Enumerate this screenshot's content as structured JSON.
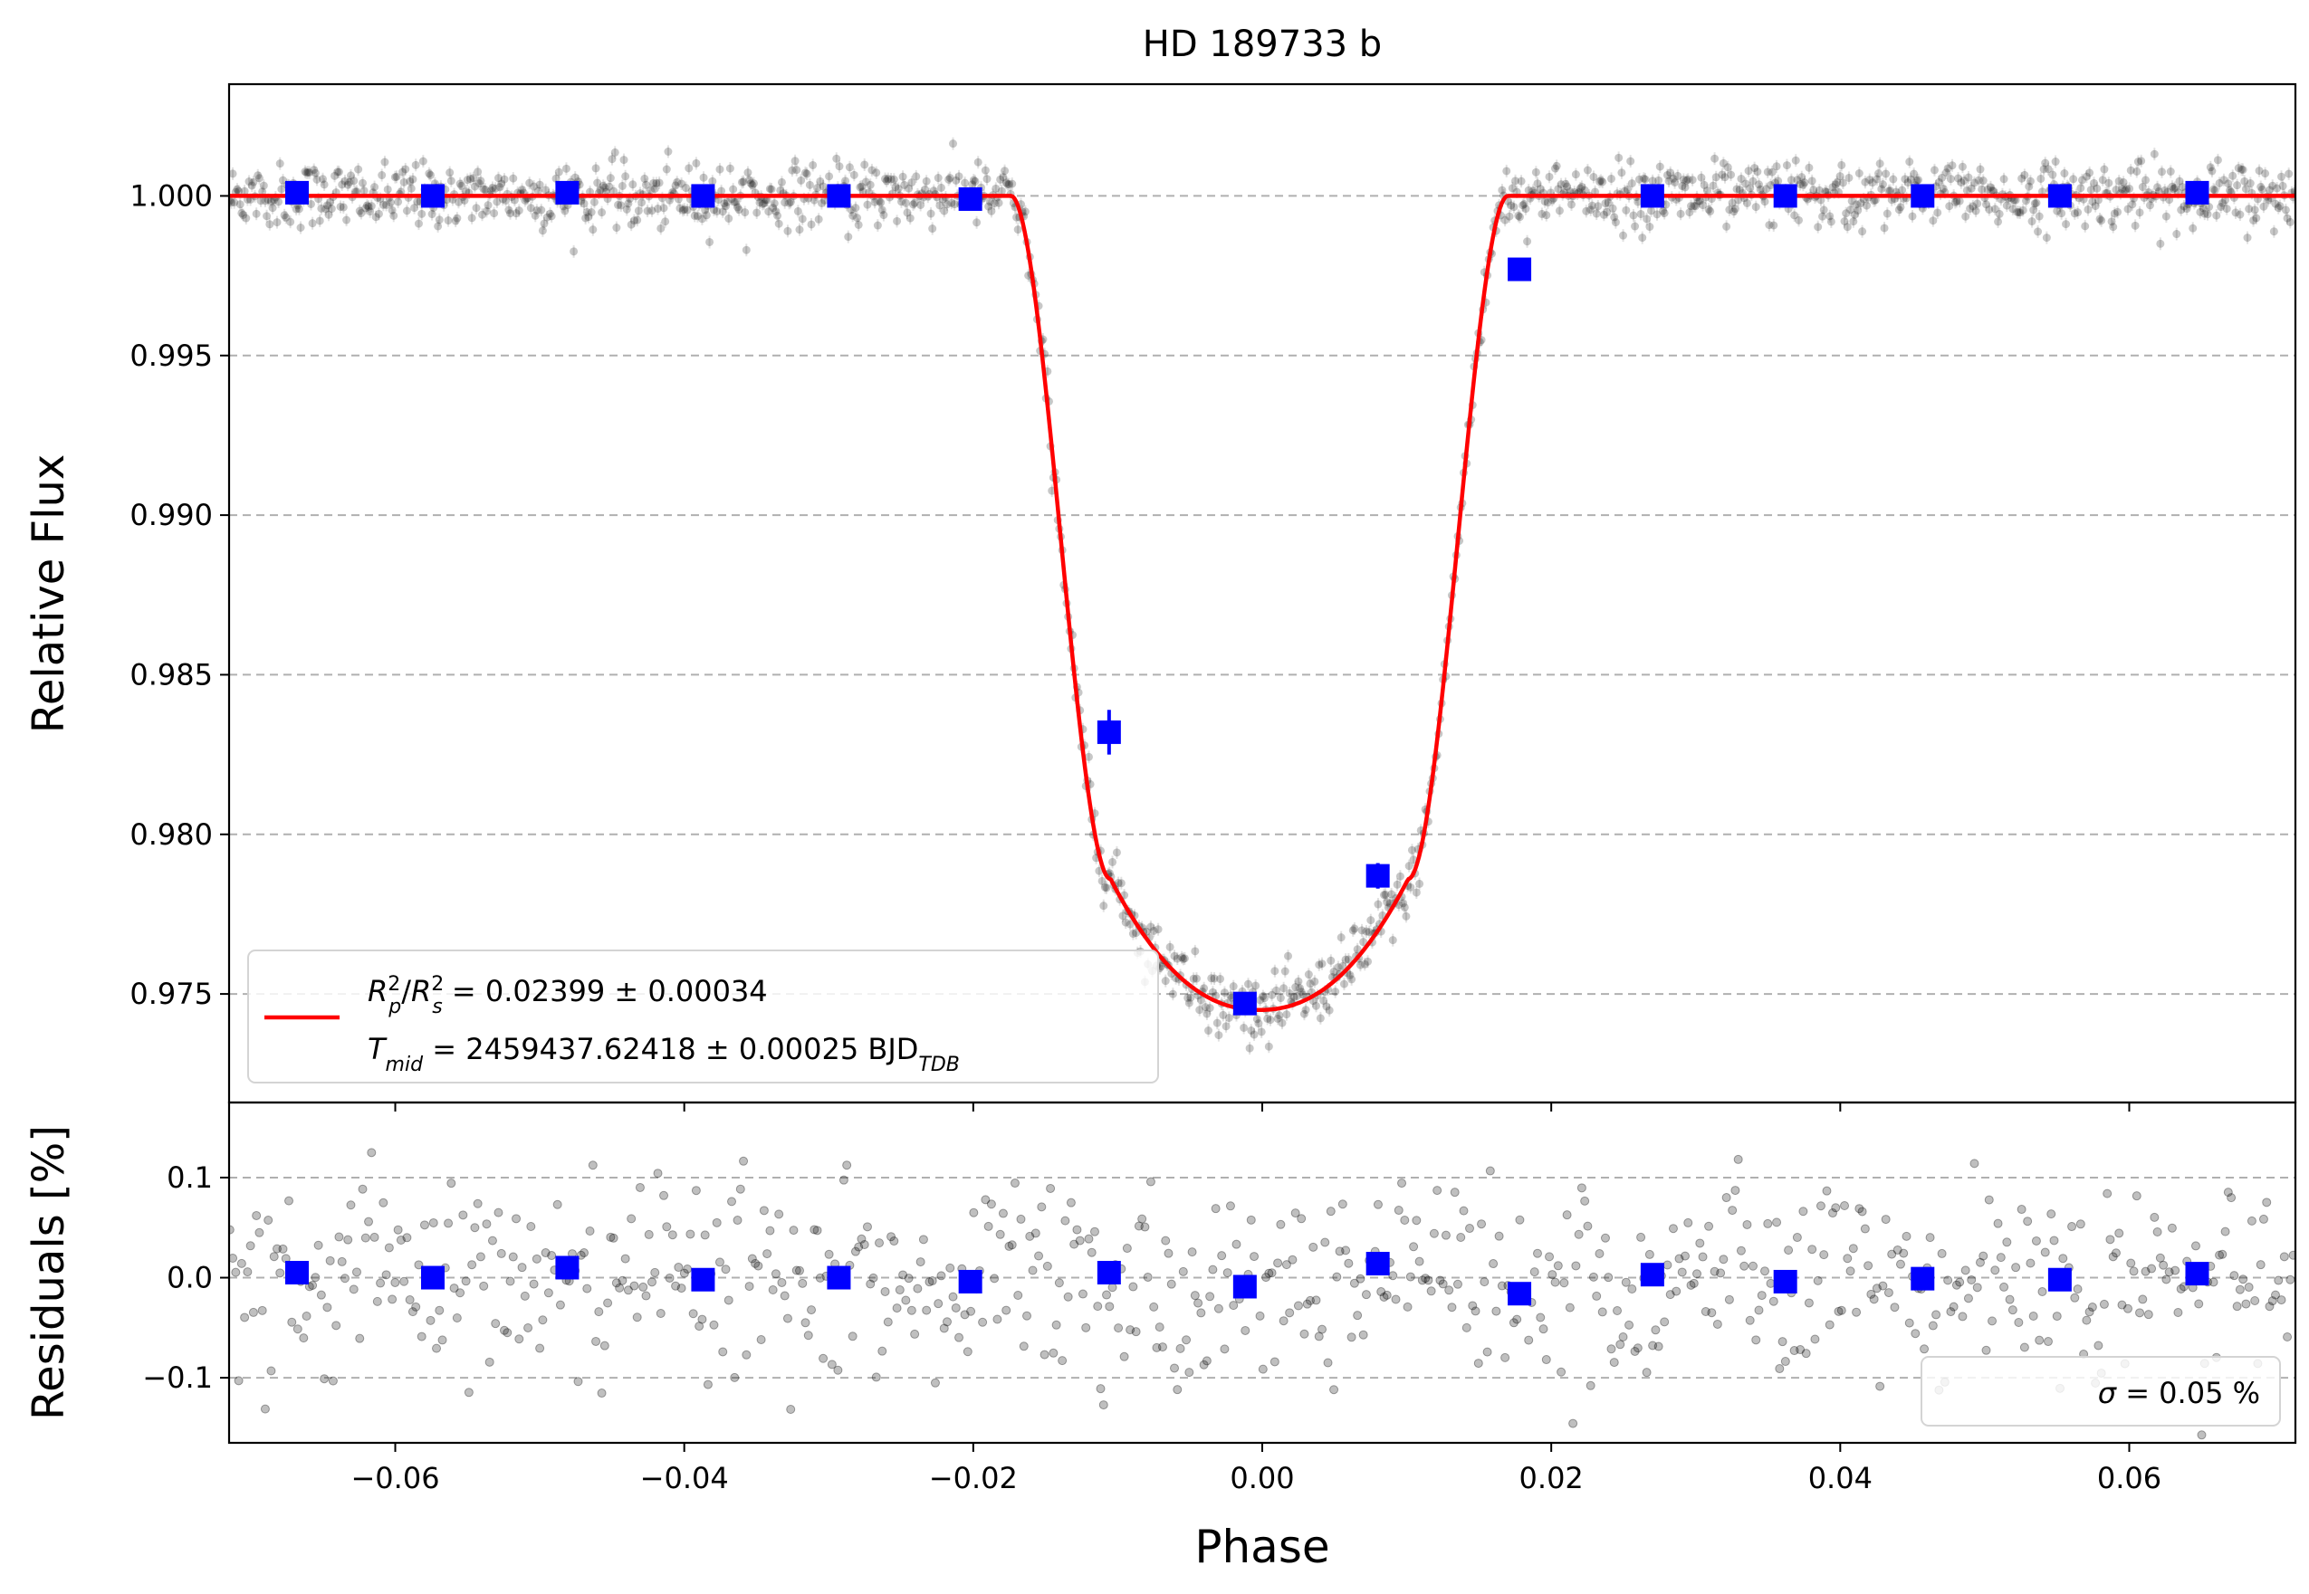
{
  "title": "HD 189733 b",
  "colors": {
    "model": "#ff0000",
    "binned": "#0000ff",
    "raw": "#000000",
    "grid": "#b0b0b0",
    "background": "#ffffff"
  },
  "chart_data": [
    {
      "type": "scatter",
      "panel": "top",
      "title": "HD 189733 b",
      "xlabel": "",
      "ylabel": "Relative Flux",
      "xlim": [
        -0.0715,
        0.0715
      ],
      "ylim": [
        0.9716,
        1.0035
      ],
      "yticks": [
        1.0,
        0.995,
        0.99,
        0.985,
        0.98,
        0.975
      ],
      "ytick_labels": [
        "1.000",
        "0.995",
        "0.990",
        "0.985",
        "0.980",
        "0.975"
      ],
      "grid": "y dashed",
      "legend_placement": "lower-left",
      "legend": {
        "line1": {
          "sym": "R",
          "sup1": "2",
          "sub1": "p",
          "slash": "/",
          "sym2": "R",
          "sup2": "2",
          "sub2": "s",
          "rest": " = 0.02399 ± 0.00034"
        },
        "line2": {
          "sym": "T",
          "sub": "mid",
          "rest": " = 2459437.62418 ± 0.00025 BJD",
          "sub2": "TDB"
        }
      },
      "model_params": {
        "transit_center": -0.0002,
        "depth": 0.02399,
        "t14_half": 0.0172,
        "t23_half": 0.0103,
        "min_flux": 0.9745
      },
      "series": [
        {
          "kind": "binned",
          "x": [
            -0.0668,
            -0.0574,
            -0.0481,
            -0.0387,
            -0.0293,
            -0.0202,
            -0.0106,
            -0.0012,
            0.008,
            0.0178,
            0.027,
            0.0362,
            0.0457,
            0.0552,
            0.0647
          ],
          "y": [
            1.0001,
            1.0,
            1.0001,
            1.0,
            1.0,
            0.9999,
            0.9832,
            0.9747,
            0.9787,
            0.9977,
            1.0,
            1.0,
            1.0,
            1.0,
            1.0001
          ],
          "yerr": [
            0.0002,
            0.0002,
            0.0002,
            0.0002,
            0.0002,
            0.0002,
            0.0007,
            0.0002,
            0.0004,
            0.0002,
            0.0002,
            0.0002,
            0.0002,
            0.0002,
            0.0002
          ]
        }
      ]
    },
    {
      "type": "scatter",
      "panel": "bottom",
      "xlabel": "Phase",
      "ylabel": "Residuals [%]",
      "xlim": [
        -0.0715,
        0.0715
      ],
      "ylim": [
        -0.165,
        0.175
      ],
      "xticks": [
        -0.06,
        -0.04,
        -0.02,
        0.0,
        0.02,
        0.04,
        0.06
      ],
      "xtick_labels": [
        "−0.06",
        "−0.04",
        "−0.02",
        "0.00",
        "0.02",
        "0.04",
        "0.06"
      ],
      "yticks": [
        0.1,
        0.0,
        -0.1
      ],
      "ytick_labels": [
        "0.1",
        "0.0",
        "−0.1"
      ],
      "grid": "y dashed",
      "legend_placement": "lower-right",
      "legend": {
        "sigma": "σ",
        "rest": " = 0.05 %"
      },
      "residual_scatter_sigma": 0.05,
      "series": [
        {
          "kind": "binned",
          "x": [
            -0.0668,
            -0.0574,
            -0.0481,
            -0.0387,
            -0.0293,
            -0.0202,
            -0.0106,
            -0.0012,
            0.008,
            0.0178,
            0.027,
            0.0362,
            0.0457,
            0.0552,
            0.0647
          ],
          "y": [
            0.005,
            0.0,
            0.01,
            -0.002,
            0.0,
            -0.004,
            0.005,
            -0.009,
            0.014,
            -0.016,
            0.003,
            -0.004,
            -0.001,
            -0.002,
            0.004
          ]
        }
      ]
    }
  ]
}
